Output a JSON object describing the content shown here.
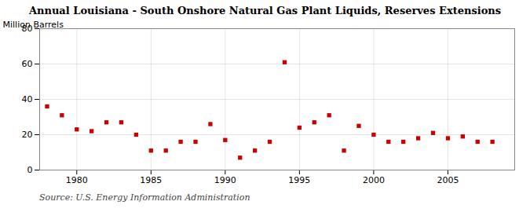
{
  "chart_data": {
    "type": "scatter",
    "title": "Annual Louisiana - South Onshore Natural Gas Plant Liquids, Reserves Extensions",
    "ylabel": "Million Barrels",
    "annotations": [
      "Source: U.S. Energy Information Administration"
    ],
    "x": [
      1978,
      1979,
      1980,
      1981,
      1982,
      1983,
      1984,
      1985,
      1986,
      1987,
      1988,
      1989,
      1990,
      1991,
      1992,
      1993,
      1994,
      1995,
      1996,
      1997,
      1998,
      1999,
      2000,
      2001,
      2002,
      2003,
      2004,
      2005,
      2006,
      2007,
      2008
    ],
    "values": [
      36,
      31,
      23,
      22,
      27,
      27,
      20,
      11,
      11,
      16,
      16,
      26,
      17,
      7,
      11,
      16,
      61,
      24,
      27,
      31,
      11,
      25,
      20,
      16,
      16,
      18,
      21,
      18,
      19,
      16,
      16
    ],
    "color": "#cc0000",
    "marker": "square",
    "xlim": [
      1977.5,
      2009.5
    ],
    "ylim": [
      0,
      80
    ],
    "xticks": [
      1980,
      1985,
      1990,
      1995,
      2000,
      2005
    ],
    "yticks": [
      0,
      20,
      40,
      60,
      80
    ],
    "grid": true
  }
}
